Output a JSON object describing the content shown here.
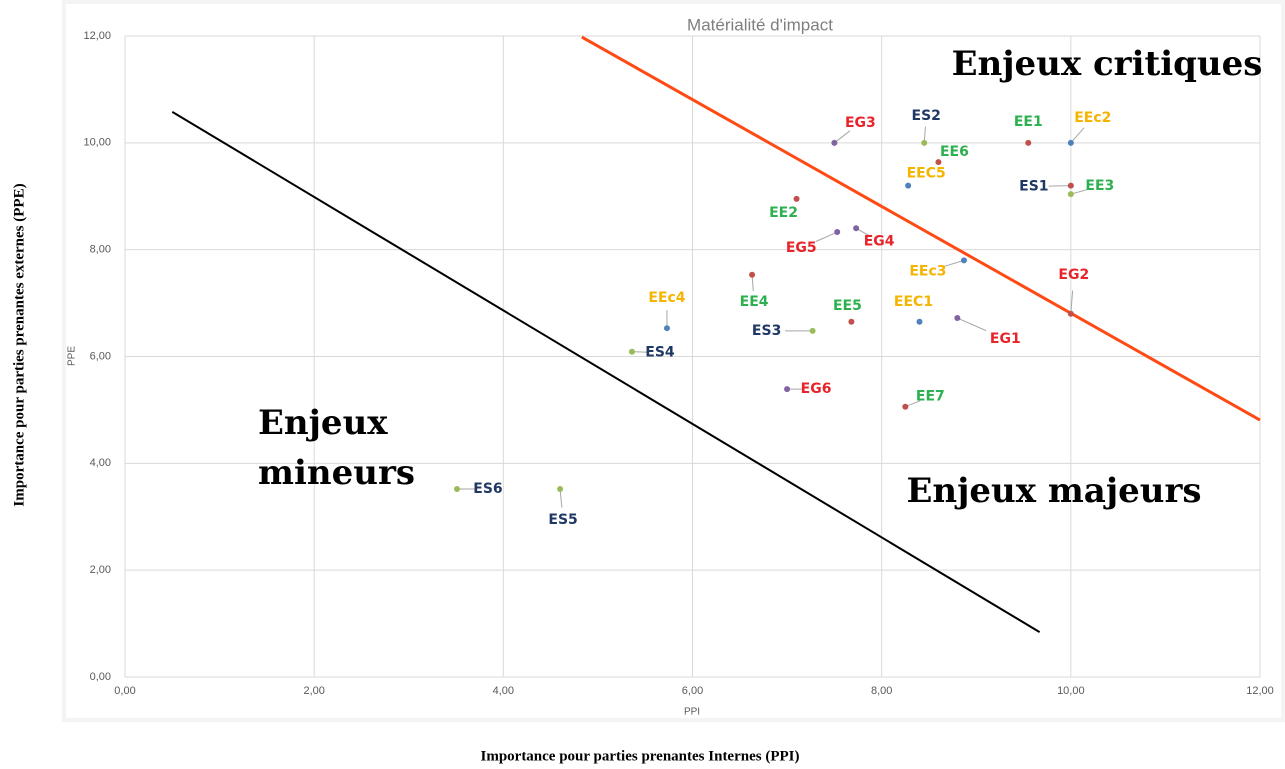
{
  "chart_data": {
    "type": "scatter",
    "title": "Matérialité d'impact",
    "x_label": "PPI",
    "y_label": "PPE",
    "outer_x_label": "Importance pour parties prenantes Internes (PPI)",
    "outer_y_label": "Importance pour parties prenantes externes (PPE)",
    "xlim": [
      0,
      12
    ],
    "ylim": [
      0,
      12
    ],
    "xticks": [
      {
        "value": 0,
        "label": "0,00"
      },
      {
        "value": 2,
        "label": "2,00"
      },
      {
        "value": 4,
        "label": "4,00"
      },
      {
        "value": 6,
        "label": "6,00"
      },
      {
        "value": 8,
        "label": "8,00"
      },
      {
        "value": 10,
        "label": "10,00"
      },
      {
        "value": 12,
        "label": "12,00"
      }
    ],
    "yticks": [
      {
        "value": 0,
        "label": "0,00"
      },
      {
        "value": 2,
        "label": "2,00"
      },
      {
        "value": 4,
        "label": "4,00"
      },
      {
        "value": 6,
        "label": "6,00"
      },
      {
        "value": 8,
        "label": "8,00"
      },
      {
        "value": 10,
        "label": "10,00"
      },
      {
        "value": 12,
        "label": "12,00"
      }
    ],
    "grid": true,
    "series": [
      {
        "labels": [
          "EG3",
          "ES2",
          "EE1",
          "EEc2",
          "EE6",
          "EEC5",
          "ES1",
          "EE3",
          "EE2",
          "EG5",
          "EG4",
          "EEc3",
          "EE4",
          "EG2",
          "EEc4",
          "EG1",
          "EE5",
          "EEC1",
          "ES3",
          "ES4",
          "EG6",
          "EE7",
          "ES6",
          "ES5"
        ],
        "x": [
          7.5,
          8.45,
          9.55,
          10.0,
          8.6,
          8.28,
          10.0,
          10.0,
          7.1,
          7.53,
          7.73,
          8.87,
          6.63,
          10.0,
          5.73,
          8.8,
          7.68,
          8.4,
          7.27,
          5.36,
          7.0,
          8.25,
          3.51,
          4.6
        ],
        "values": [
          10.0,
          10.0,
          10.0,
          10.0,
          9.64,
          9.2,
          9.2,
          9.04,
          8.95,
          8.33,
          8.4,
          7.8,
          7.53,
          6.8,
          6.53,
          6.72,
          6.65,
          6.65,
          6.48,
          6.09,
          5.39,
          5.06,
          3.52,
          3.52
        ],
        "colors": [
          "#8064a2",
          "#9bbb59",
          "#c0504d",
          "#4f81bd",
          "#c0504d",
          "#4f81bd",
          "#c0504d",
          "#9bbb59",
          "#c0504d",
          "#8064a2",
          "#8064a2",
          "#4f81bd",
          "#c0504d",
          "#c0504d",
          "#4f81bd",
          "#8064a2",
          "#c0504d",
          "#4f81bd",
          "#9bbb59",
          "#9bbb59",
          "#8064a2",
          "#c0504d",
          "#9bbb59",
          "#9bbb59"
        ],
        "label_colors": [
          "#e8242b",
          "#1f3864",
          "#2db04f",
          "#f5b400",
          "#2db04f",
          "#f5b400",
          "#1f3864",
          "#2db04f",
          "#2db04f",
          "#e8242b",
          "#e8242b",
          "#f5b400",
          "#2db04f",
          "#e8242b",
          "#f5b400",
          "#e8242b",
          "#2db04f",
          "#f5b400",
          "#1f3864",
          "#1f3864",
          "#e8242b",
          "#2db04f",
          "#1f3864",
          "#1f3864"
        ]
      }
    ],
    "lines": [
      {
        "x": [
          4.83,
          12.0
        ],
        "y": [
          11.98,
          4.81
        ],
        "color": "#ff4a14"
      },
      {
        "x": [
          0.5,
          9.67
        ],
        "y": [
          10.58,
          0.84
        ],
        "color": "#000000"
      }
    ],
    "annotations": [
      "Enjeux critiques",
      "Enjeux",
      "mineurs",
      "Enjeux majeurs"
    ]
  }
}
